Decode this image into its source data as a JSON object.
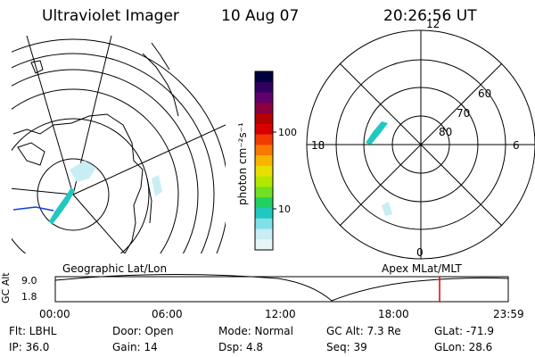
{
  "header": {
    "instrument": "Ultraviolet Imager",
    "date": "10 Aug 07",
    "time": "20:26:56 UT"
  },
  "geo_panel": {
    "label": "Geographic Lat/Lon"
  },
  "mag_panel": {
    "label": "Apex MLat/MLT",
    "mlt_labels": [
      "12",
      "18",
      "6",
      "0"
    ],
    "mlat_labels": [
      "60",
      "70",
      "80"
    ]
  },
  "colorbar": {
    "unit_label": "photon cm⁻²s⁻¹",
    "tick_labels": [
      "100",
      "10"
    ],
    "colors": [
      "#000040",
      "#300060",
      "#60006a",
      "#8c0040",
      "#b40000",
      "#d80000",
      "#f03c00",
      "#f87800",
      "#f8b400",
      "#e8e000",
      "#b0e800",
      "#70e020",
      "#20d060",
      "#20c8c0",
      "#80e0e8",
      "#c8eef4",
      "#e8f6fa"
    ]
  },
  "altitude_strip": {
    "ylabel": "GC Alt",
    "y_ticks": [
      "9.0",
      "1.8"
    ],
    "x_ticks": [
      "00:00",
      "06:00",
      "12:00",
      "18:00",
      "23:59"
    ],
    "current_marker_color": "#e00000"
  },
  "info": {
    "flt": "Flt: LBHL",
    "ip": "IP: 36.0",
    "door": "Door: Open",
    "gain": "Gain: 14",
    "mode": "Mode: Normal",
    "dsp": "Dsp:     4.8",
    "gcalt": "GC Alt: 7.3 Re",
    "seq": "Seq: 39",
    "glat": "GLat: -71.9",
    "glon": "GLon:  28.6"
  }
}
